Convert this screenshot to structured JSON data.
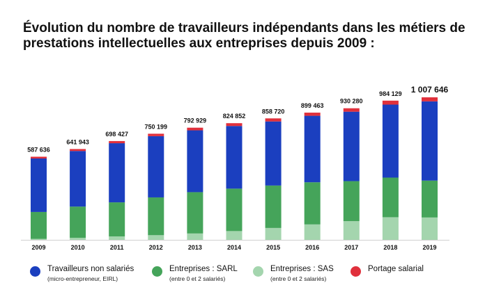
{
  "title_line1": "Évolution du nombre de travailleurs indépendants dans les métiers de",
  "title_line2": "prestations intellectuelles aux entreprises depuis 2009 :",
  "colors": {
    "tns": "#1b3fbf",
    "sarl": "#45a45a",
    "sas": "#a4d5ae",
    "portage": "#e0303c"
  },
  "legend": [
    {
      "label": "Travailleurs non salariés",
      "sub": "(micro-entrepreneur, EIRL)",
      "color_key": "tns"
    },
    {
      "label": "Entreprises : SARL",
      "sub": "(entre 0 et 2 salariés)",
      "color_key": "sarl"
    },
    {
      "label": "Entreprises : SAS",
      "sub": "(entre 0 et 2 salariés)",
      "color_key": "sas"
    },
    {
      "label": "Portage salarial",
      "sub": "",
      "color_key": "portage"
    }
  ],
  "chart_data": {
    "type": "bar",
    "stacked": true,
    "categories": [
      "2009",
      "2010",
      "2011",
      "2012",
      "2013",
      "2014",
      "2015",
      "2016",
      "2017",
      "2018",
      "2019"
    ],
    "totals": [
      "587 636",
      "641 943",
      "698 427",
      "750 199",
      "792 929",
      "824 852",
      "858 720",
      "899 463",
      "930 280",
      "984 129",
      "1 007 646"
    ],
    "series": [
      {
        "name": "Entreprises : SAS",
        "color_key": "sas",
        "values": [
          7000,
          14000,
          24000,
          33000,
          45000,
          62000,
          84000,
          109000,
          132000,
          160000,
          158000
        ]
      },
      {
        "name": "Entreprises : SARL",
        "color_key": "sarl",
        "values": [
          190000,
          221000,
          241000,
          267000,
          292000,
          300000,
          300000,
          298000,
          283000,
          280000,
          261000
        ]
      },
      {
        "name": "Travailleurs non salariés",
        "color_key": "tns",
        "values": [
          378000,
          393000,
          418000,
          433000,
          437000,
          443000,
          453000,
          470000,
          491000,
          516000,
          560000
        ]
      },
      {
        "name": "Portage salarial",
        "color_key": "portage",
        "values": [
          12636,
          13943,
          15427,
          17199,
          18929,
          19852,
          21720,
          22463,
          24280,
          28129,
          28646
        ]
      }
    ],
    "ylim": [
      0,
      1050000
    ],
    "grid": false
  }
}
